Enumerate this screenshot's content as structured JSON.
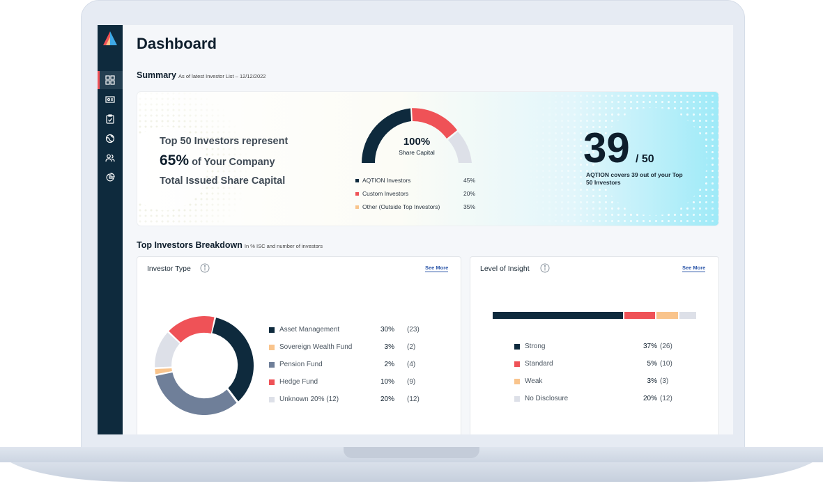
{
  "dashboard": {
    "title": "Dashboard",
    "summary": {
      "heading": "Summary",
      "subheading": "As of latest Investor List – 12/12/2022",
      "line1": "Top 50 Investors represent",
      "percent": "65%",
      "line2_rest": "of Your Company",
      "line3": "Total Issued Share Capital",
      "gauge": {
        "center_value": "100%",
        "center_label": "Share Capital",
        "legend": [
          {
            "label": "AQTION Investors",
            "value": "45%",
            "color": "#0e2a3d"
          },
          {
            "label": "Custom Investors",
            "value": "20%",
            "color": "#ef5257"
          },
          {
            "label": "Other (Outside Top Investors)",
            "value": "35%",
            "color": "#f9c48c"
          }
        ]
      },
      "coverage_number": "39",
      "coverage_total": "/ 50",
      "coverage_caption": "AQTION covers 39 out of your Top 50 Investors"
    },
    "breakdown": {
      "heading": "Top Investors Breakdown",
      "subheading": "In % ISC and number of investors"
    },
    "investor_type": {
      "title": "Investor Type",
      "see_more": "See More",
      "rows": [
        {
          "label": "Asset Management",
          "pct": "30%",
          "count": "(23)",
          "color": "#0e2a3d"
        },
        {
          "label": "Sovereign Wealth Fund",
          "pct": "3%",
          "count": "(2)",
          "color": "#f9c48c"
        },
        {
          "label": "Pension Fund",
          "pct": "2%",
          "count": "(4)",
          "color": "#6f7f99"
        },
        {
          "label": "Hedge Fund",
          "pct": "10%",
          "count": "(9)",
          "color": "#ef5257"
        },
        {
          "label": "Unknown 20% (12)",
          "pct": "20%",
          "count": "(12)",
          "color": "#dde0e8"
        }
      ]
    },
    "level_of_insight": {
      "title": "Level of Insight",
      "see_more": "See More",
      "rows": [
        {
          "label": "Strong",
          "pct": "37%",
          "count": "(26)",
          "color": "#0e2a3d"
        },
        {
          "label": "Standard",
          "pct": "5%",
          "count": "(10)",
          "color": "#ef5257"
        },
        {
          "label": "Weak",
          "pct": "3%",
          "count": "(3)",
          "color": "#f9c48c"
        },
        {
          "label": "No Disclosure",
          "pct": "20%",
          "count": "(12)",
          "color": "#dde0e8"
        }
      ]
    },
    "nav": [
      "logo-icon",
      "dashboard-grid-icon",
      "id-card-icon",
      "clipboard-check-icon",
      "globe-icon",
      "users-icon",
      "pie-chart-icon"
    ]
  }
}
